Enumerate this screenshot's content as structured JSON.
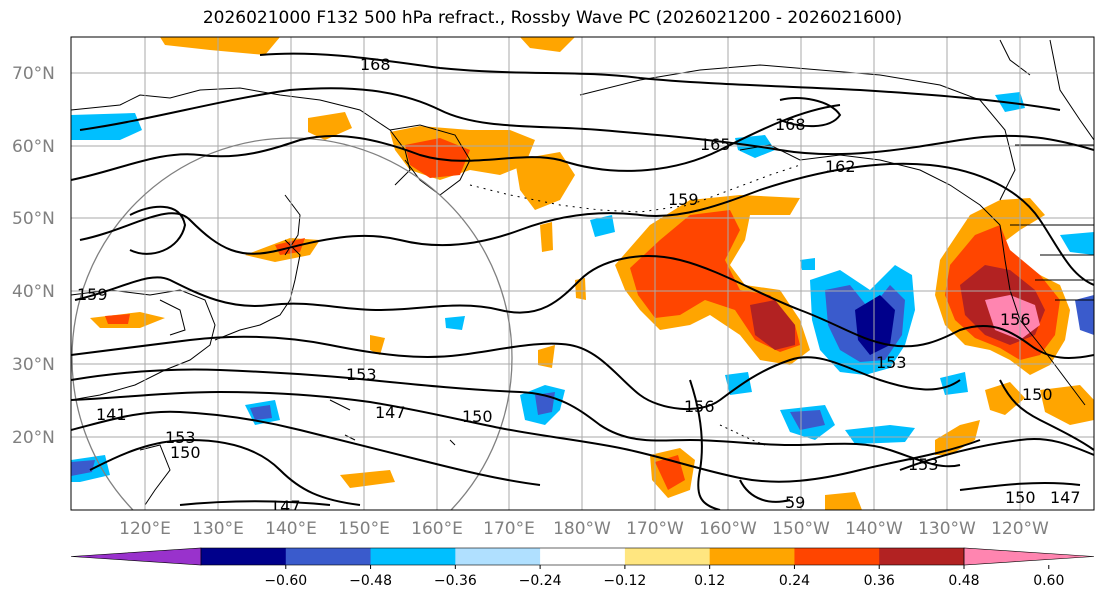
{
  "title": "2026021000 F132 500 hPa refract., Rossby Wave PC (2026021200 - 2026021600)",
  "lat_labels": [
    "70°N",
    "60°N",
    "50°N",
    "40°N",
    "30°N",
    "20°N"
  ],
  "lon_labels": [
    "120°E",
    "130°E",
    "140°E",
    "150°E",
    "160°E",
    "170°E",
    "180°W",
    "170°W",
    "160°W",
    "150°W",
    "140°W",
    "130°W",
    "120°W"
  ],
  "colorbar": {
    "colors": [
      "#9932cc",
      "#00008b",
      "#3a5bcc",
      "#00bfff",
      "#b0e0ff",
      "#ffffff",
      "#ffe680",
      "#ffa500",
      "#ff4500",
      "#b22222",
      "#ff85b0"
    ],
    "ticks": [
      "−0.60",
      "−0.48",
      "−0.36",
      "−0.24",
      "−0.12",
      "0.12",
      "0.24",
      "0.36",
      "0.48",
      "0.60"
    ]
  },
  "contour_labels": [
    "168",
    "168",
    "165",
    "162",
    "159",
    "159",
    "153",
    "147",
    "150",
    "156",
    "153",
    "153",
    "150",
    "147",
    "156",
    "150",
    "147",
    "141",
    "153",
    "150",
    "59"
  ]
}
